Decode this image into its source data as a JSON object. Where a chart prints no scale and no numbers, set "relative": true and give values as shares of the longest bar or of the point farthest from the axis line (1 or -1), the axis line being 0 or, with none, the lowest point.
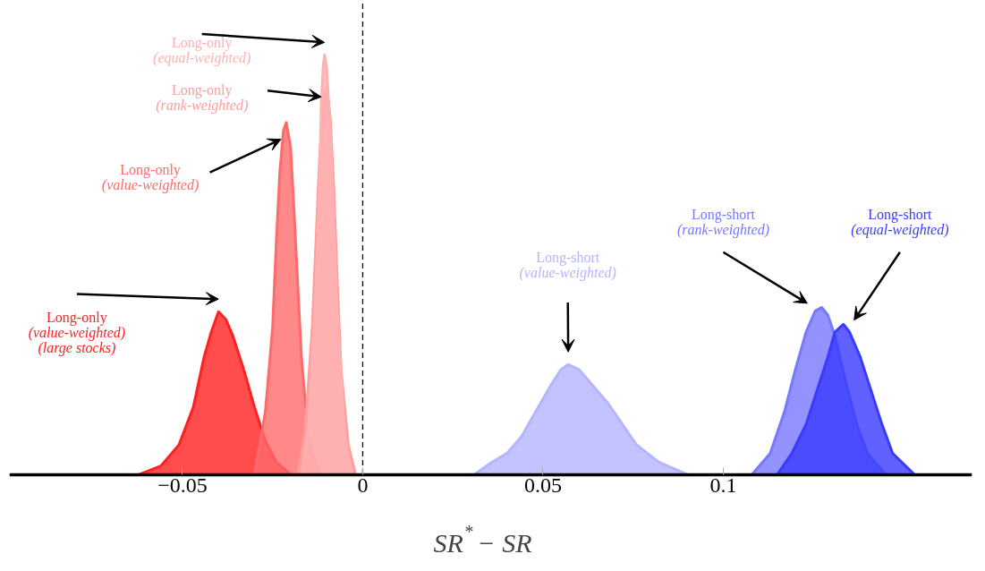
{
  "chart_data": {
    "type": "area",
    "relative": true,
    "xlabel": "SR$^{*}$ − SR",
    "xlim": [
      -0.098,
      0.169
    ],
    "xticks": [
      -0.05,
      0,
      0.05,
      0.1
    ],
    "grid": false,
    "legend": false,
    "ref_lines": [
      {
        "axis": "x",
        "value": 0,
        "color": "#000000",
        "line_style": "dashed"
      }
    ],
    "series": [
      {
        "name": "Long-only\n(value-weighted)\n(large stocks)",
        "color": "#ff2020",
        "x": [
          -0.062,
          -0.056,
          -0.051,
          -0.047,
          -0.044,
          -0.042,
          -0.04,
          -0.038,
          -0.036,
          -0.033,
          -0.03,
          -0.027,
          -0.024,
          -0.02
        ],
        "values": [
          0,
          0.02,
          0.07,
          0.16,
          0.28,
          0.34,
          0.388,
          0.37,
          0.33,
          0.25,
          0.16,
          0.08,
          0.03,
          0
        ]
      },
      {
        "name": "Long-only\n(value-weighted)",
        "color": "#ff6a6a",
        "x": [
          -0.03,
          -0.027,
          -0.025,
          -0.024,
          -0.023,
          -0.022,
          -0.0212,
          -0.02,
          -0.019,
          -0.018,
          -0.017,
          -0.015,
          -0.012
        ],
        "values": [
          0,
          0.15,
          0.35,
          0.55,
          0.72,
          0.82,
          0.839,
          0.78,
          0.62,
          0.45,
          0.28,
          0.08,
          0
        ]
      },
      {
        "name": "Long-only\n(rank-weighted)",
        "color": "#ff9c9c",
        "x": [
          -0.018,
          -0.016,
          -0.014,
          -0.013,
          -0.012,
          -0.011,
          -0.01,
          -0.009,
          -0.008,
          -0.007,
          -0.006,
          -0.004,
          -0.002
        ],
        "values": [
          0,
          0.1,
          0.35,
          0.55,
          0.75,
          0.88,
          0.92,
          0.85,
          0.68,
          0.45,
          0.25,
          0.07,
          0
        ]
      },
      {
        "name": "Long-only\n(equal-weighted)",
        "color": "#ffb0b0",
        "x": [
          -0.017,
          -0.015,
          -0.013,
          -0.012,
          -0.0115,
          -0.011,
          -0.0106,
          -0.01,
          -0.009,
          -0.008,
          -0.007,
          -0.005,
          -0.003
        ],
        "values": [
          0,
          0.12,
          0.45,
          0.7,
          0.88,
          0.97,
          1.0,
          0.97,
          0.82,
          0.6,
          0.38,
          0.1,
          0
        ]
      },
      {
        "name": "Long-short\n(value-weighted)",
        "color": "#b4b4ff",
        "x": [
          0.031,
          0.036,
          0.04,
          0.044,
          0.048,
          0.052,
          0.055,
          0.057,
          0.06,
          0.064,
          0.068,
          0.072,
          0.076,
          0.082,
          0.09
        ],
        "values": [
          0,
          0.03,
          0.05,
          0.09,
          0.15,
          0.21,
          0.25,
          0.262,
          0.25,
          0.21,
          0.17,
          0.12,
          0.07,
          0.03,
          0
        ]
      },
      {
        "name": "Long-short\n(rank-weighted)",
        "color": "#7878ff",
        "x": [
          0.108,
          0.113,
          0.117,
          0.12,
          0.123,
          0.1255,
          0.1273,
          0.129,
          0.131,
          0.134,
          0.137,
          0.14,
          0.145
        ],
        "values": [
          0,
          0.05,
          0.15,
          0.25,
          0.34,
          0.39,
          0.398,
          0.38,
          0.33,
          0.22,
          0.12,
          0.05,
          0
        ]
      },
      {
        "name": "Long-short\n(equal-weighted)",
        "color": "#3a3aff",
        "x": [
          0.115,
          0.119,
          0.123,
          0.126,
          0.129,
          0.131,
          0.1333,
          0.135,
          0.138,
          0.141,
          0.144,
          0.147,
          0.153
        ],
        "values": [
          0,
          0.05,
          0.12,
          0.2,
          0.28,
          0.34,
          0.358,
          0.34,
          0.28,
          0.2,
          0.12,
          0.05,
          0
        ]
      }
    ]
  }
}
